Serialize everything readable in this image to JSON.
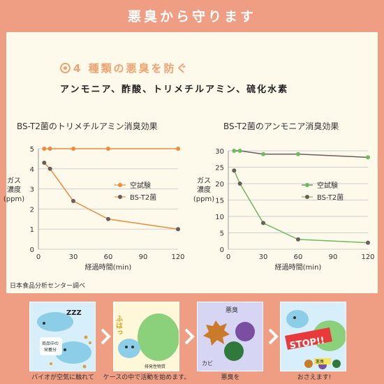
{
  "header": {
    "title": "悪臭から守ります"
  },
  "section": {
    "heading": "4 種類の悪臭を防ぐ",
    "subheading": "アンモニア、酢酸、トリメチルアミン、硫化水素"
  },
  "source_note": "日本食品分析センター調べ",
  "chart_data": [
    {
      "type": "line",
      "title": "BS-T2菌のトリメチルアミン消臭効果",
      "xlabel": "経過時間(min)",
      "ylabel": [
        "ガス",
        "濃度",
        "(ppm)"
      ],
      "x_ticks": [
        0,
        30,
        60,
        90,
        120
      ],
      "y_ticks": [
        0,
        1,
        2,
        3,
        4,
        5
      ],
      "xlim": [
        0,
        120
      ],
      "ylim": [
        0,
        5
      ],
      "grid": "horizontal",
      "legend_position": "right",
      "series": [
        {
          "name": "空試験",
          "color": "#f08a3c",
          "marker": "circle",
          "x": [
            5,
            10,
            30,
            60,
            120
          ],
          "y": [
            5,
            5,
            5,
            5,
            5
          ]
        },
        {
          "name": "BS-T2菌",
          "color": "#6b5d5a",
          "line_color": "#f08a3c",
          "marker": "circle",
          "x": [
            5,
            10,
            30,
            60,
            120
          ],
          "y": [
            4.3,
            4.0,
            2.4,
            1.5,
            1.0
          ]
        }
      ]
    },
    {
      "type": "line",
      "title": "BS-T2菌のアンモニア消臭効果",
      "xlabel": "経過時間(min)",
      "ylabel": [
        "ガス",
        "濃度",
        "(ppm)"
      ],
      "x_ticks": [
        0,
        30,
        60,
        90,
        120
      ],
      "y_ticks": [
        0,
        5,
        10,
        15,
        20,
        25,
        30
      ],
      "xlim": [
        0,
        120
      ],
      "ylim": [
        0,
        30
      ],
      "grid": "horizontal",
      "legend_position": "right",
      "series": [
        {
          "name": "空試験",
          "color": "#6cbb5c",
          "line_color": "#6b5d5a",
          "marker": "circle",
          "x": [
            5,
            10,
            30,
            60,
            120
          ],
          "y": [
            30,
            30,
            29,
            29,
            28
          ]
        },
        {
          "name": "BS-T2菌",
          "color": "#6b5d5a",
          "line_color": "#6cbb5c",
          "marker": "circle",
          "x": [
            5,
            10,
            30,
            60,
            120
          ],
          "y": [
            24,
            20,
            8,
            3,
            2
          ]
        }
      ]
    }
  ],
  "steps": [
    {
      "caption": "バイオが空気に触れて",
      "texts": [
        "ZZZ",
        "商品中の",
        "栄養分"
      ]
    },
    {
      "caption": "ケースの中で活動を始めます。",
      "texts": [
        "ふはっ",
        "排発性物質"
      ]
    },
    {
      "caption": "悪臭を",
      "texts": [
        "悪臭",
        "カビ"
      ]
    },
    {
      "caption": "おさえます!",
      "texts": [
        "STOP!!",
        "悪臭"
      ]
    }
  ]
}
